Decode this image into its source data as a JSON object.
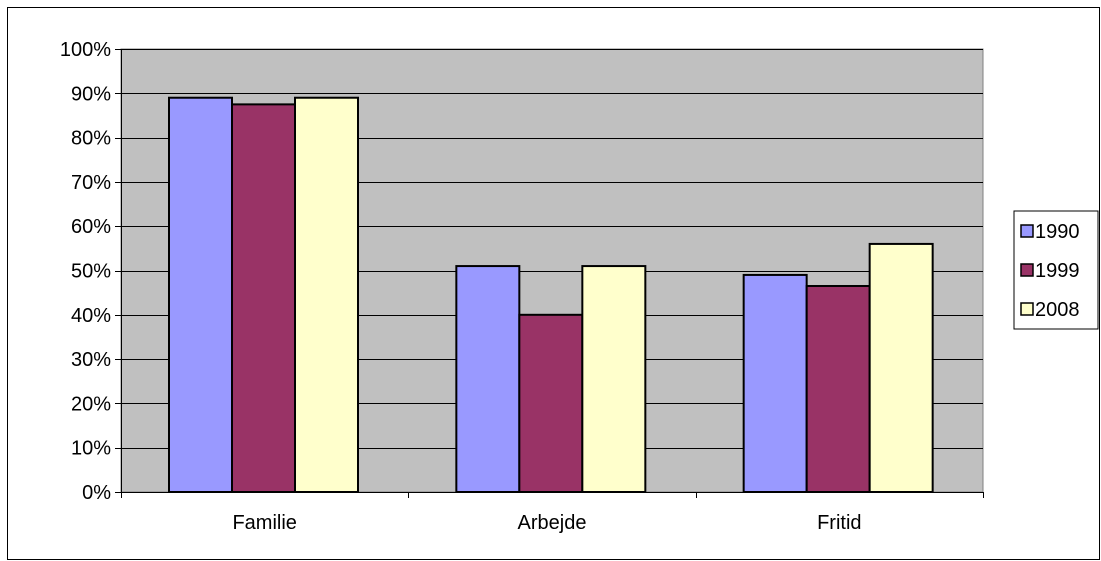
{
  "chart_data": {
    "type": "bar",
    "categories": [
      "Familie",
      "Arbejde",
      "Fritid"
    ],
    "series": [
      {
        "name": "1990",
        "color": "#9999ff",
        "values": [
          89,
          51,
          49
        ]
      },
      {
        "name": "1999",
        "color": "#993366",
        "values": [
          87.5,
          40,
          46.5
        ]
      },
      {
        "name": "2008",
        "color": "#ffffcc",
        "values": [
          89,
          51,
          56
        ]
      }
    ],
    "ylim": [
      0,
      100
    ],
    "yticks": [
      0,
      10,
      20,
      30,
      40,
      50,
      60,
      70,
      80,
      90,
      100
    ],
    "ytick_labels": [
      "0%",
      "10%",
      "20%",
      "30%",
      "40%",
      "50%",
      "60%",
      "70%",
      "80%",
      "90%",
      "100%"
    ],
    "title": "",
    "xlabel": "",
    "ylabel": "",
    "grid": true,
    "legend_position": "right",
    "plot_background": "#c0c0c0"
  }
}
